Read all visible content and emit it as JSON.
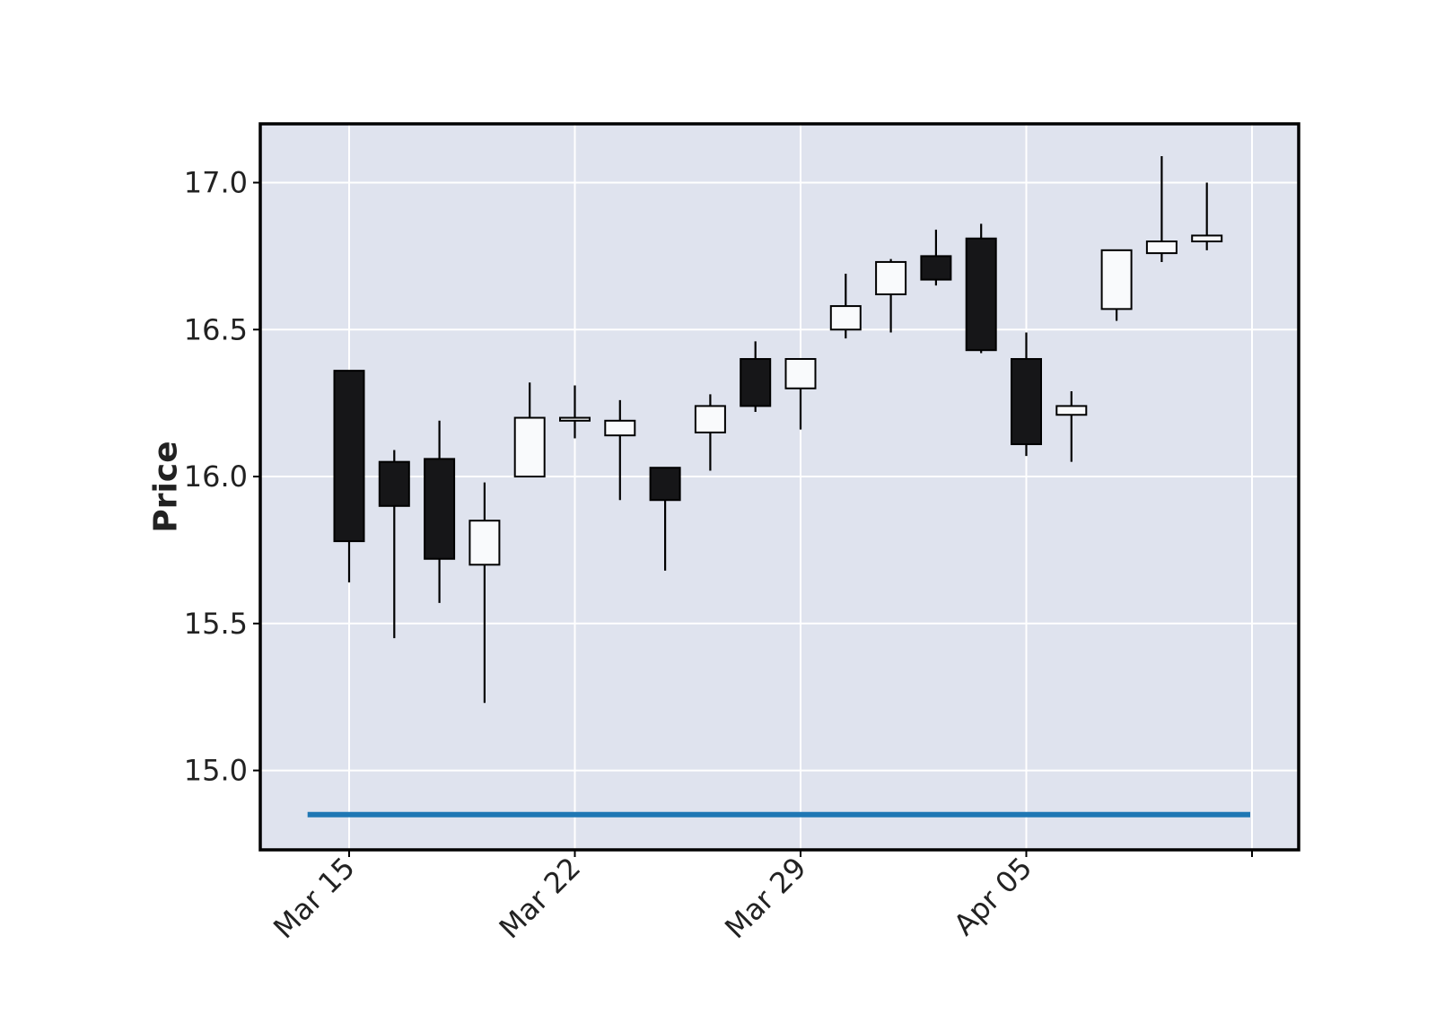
{
  "chart_data": {
    "type": "candlestick",
    "title": "",
    "xlabel": "",
    "ylabel": "Price",
    "ylim": [
      14.73,
      17.2
    ],
    "grid": true,
    "y_ticks": [
      "15.0",
      "15.5",
      "16.0",
      "16.5",
      "17.0"
    ],
    "x_ticks": [
      {
        "label": "Mar 15",
        "index": 0
      },
      {
        "label": "Mar 22",
        "index": 5
      },
      {
        "label": "Mar 29",
        "index": 10
      },
      {
        "label": "Apr 05",
        "index": 15
      },
      {
        "label": "",
        "index": 20
      }
    ],
    "candles": [
      {
        "open": 16.36,
        "high": 16.36,
        "low": 15.64,
        "close": 15.78
      },
      {
        "open": 16.05,
        "high": 16.09,
        "low": 15.45,
        "close": 15.9
      },
      {
        "open": 16.06,
        "high": 16.19,
        "low": 15.57,
        "close": 15.72
      },
      {
        "open": 15.7,
        "high": 15.98,
        "low": 15.23,
        "close": 15.85
      },
      {
        "open": 16.0,
        "high": 16.32,
        "low": 16.0,
        "close": 16.2
      },
      {
        "open": 16.19,
        "high": 16.31,
        "low": 16.13,
        "close": 16.2
      },
      {
        "open": 16.14,
        "high": 16.26,
        "low": 15.92,
        "close": 16.19
      },
      {
        "open": 16.03,
        "high": 16.03,
        "low": 15.68,
        "close": 15.92
      },
      {
        "open": 16.15,
        "high": 16.28,
        "low": 16.02,
        "close": 16.24
      },
      {
        "open": 16.4,
        "high": 16.46,
        "low": 16.22,
        "close": 16.24
      },
      {
        "open": 16.3,
        "high": 16.4,
        "low": 16.16,
        "close": 16.4
      },
      {
        "open": 16.5,
        "high": 16.69,
        "low": 16.47,
        "close": 16.58
      },
      {
        "open": 16.62,
        "high": 16.74,
        "low": 16.49,
        "close": 16.73
      },
      {
        "open": 16.75,
        "high": 16.84,
        "low": 16.65,
        "close": 16.67
      },
      {
        "open": 16.81,
        "high": 16.86,
        "low": 16.42,
        "close": 16.43
      },
      {
        "open": 16.4,
        "high": 16.49,
        "low": 16.07,
        "close": 16.11
      },
      {
        "open": 16.21,
        "high": 16.29,
        "low": 16.05,
        "close": 16.24
      },
      {
        "open": 16.57,
        "high": 16.77,
        "low": 16.53,
        "close": 16.77
      },
      {
        "open": 16.76,
        "high": 17.09,
        "low": 16.73,
        "close": 16.8
      },
      {
        "open": 16.8,
        "high": 17.0,
        "low": 16.77,
        "close": 16.82
      }
    ],
    "overlay_line": {
      "value": 14.85,
      "color": "#1f77b4",
      "from_index": -1,
      "to_index": 20
    },
    "colors": {
      "background": "#dfe3ee",
      "grid": "#ffffff",
      "up_body": "#f9fafc",
      "down_body": "#161618",
      "edge": "#000000",
      "frame": "#000000"
    }
  }
}
